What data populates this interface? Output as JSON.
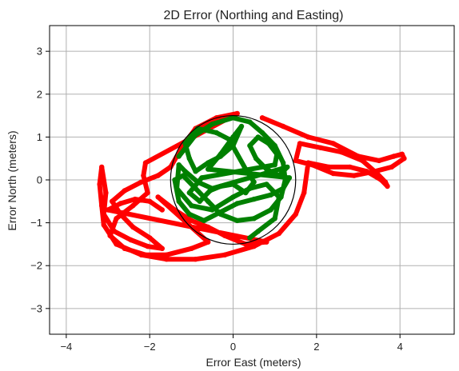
{
  "chart_data": {
    "type": "scatter",
    "title": "2D Error (Northing and Easting)",
    "xlabel": "Error East (meters)",
    "ylabel": "Error North (meters)",
    "xlim": [
      -4.4,
      5.3
    ],
    "ylim": [
      -3.6,
      3.6
    ],
    "xticks": [
      -4,
      -2,
      0,
      2,
      4
    ],
    "xtick_labels": [
      "−4",
      "−2",
      "0",
      "2",
      "4"
    ],
    "yticks": [
      -3,
      -2,
      -1,
      0,
      1,
      2,
      3
    ],
    "ytick_labels": [
      "−3",
      "−2",
      "−1",
      "0",
      "1",
      "2",
      "3"
    ],
    "grid": true,
    "circle": {
      "center": [
        0,
        0
      ],
      "radius": 1.5,
      "color": "#000000"
    },
    "series": [
      {
        "color": "#ff0000",
        "points": [
          [
            0.7,
            1.45
          ],
          [
            1.2,
            1.25
          ],
          [
            1.8,
            1.0
          ],
          [
            2.4,
            0.85
          ],
          [
            3.0,
            0.55
          ],
          [
            3.5,
            0.45
          ],
          [
            3.85,
            0.55
          ],
          [
            4.05,
            0.6
          ],
          [
            4.1,
            0.5
          ],
          [
            3.8,
            0.3
          ],
          [
            3.4,
            0.2
          ],
          [
            2.9,
            0.1
          ],
          [
            2.4,
            0.15
          ],
          [
            1.9,
            0.35
          ],
          [
            1.5,
            0.45
          ],
          [
            1.6,
            0.85
          ],
          [
            2.1,
            0.75
          ],
          [
            2.6,
            0.65
          ],
          [
            3.1,
            0.45
          ],
          [
            3.45,
            0.15
          ],
          [
            3.65,
            -0.05
          ],
          [
            3.7,
            -0.15
          ],
          [
            3.55,
            0.0
          ],
          [
            3.2,
            0.2
          ],
          [
            2.8,
            0.3
          ],
          [
            2.3,
            0.3
          ],
          [
            1.8,
            0.4
          ],
          [
            1.7,
            -0.3
          ],
          [
            1.5,
            -0.8
          ],
          [
            1.1,
            -1.25
          ],
          [
            0.5,
            -1.55
          ],
          [
            -0.2,
            -1.75
          ],
          [
            -0.9,
            -1.85
          ],
          [
            -1.6,
            -1.85
          ],
          [
            -2.2,
            -1.75
          ],
          [
            -2.8,
            -1.5
          ],
          [
            -3.1,
            -1.05
          ],
          [
            -3.15,
            -0.6
          ],
          [
            -3.2,
            -0.1
          ],
          [
            -3.15,
            0.3
          ],
          [
            -3.05,
            -0.3
          ],
          [
            -3.1,
            -0.8
          ],
          [
            -2.85,
            -1.2
          ],
          [
            -2.45,
            -1.4
          ],
          [
            -2.05,
            -1.55
          ],
          [
            -1.7,
            -1.6
          ],
          [
            -2.0,
            -1.35
          ],
          [
            -2.4,
            -1.1
          ],
          [
            -2.7,
            -0.8
          ],
          [
            -2.9,
            -0.5
          ],
          [
            -2.6,
            -0.25
          ],
          [
            -2.2,
            -0.05
          ],
          [
            -1.8,
            0.1
          ],
          [
            -1.5,
            0.3
          ],
          [
            -1.2,
            0.8
          ],
          [
            -0.9,
            1.2
          ],
          [
            -0.4,
            1.45
          ],
          [
            0.1,
            1.55
          ],
          [
            -2.1,
            0.4
          ],
          [
            -2.15,
            0.1
          ],
          [
            -2.05,
            -0.3
          ],
          [
            -2.4,
            -0.6
          ],
          [
            -2.8,
            -0.9
          ],
          [
            -2.95,
            -1.3
          ],
          [
            -2.6,
            -1.6
          ],
          [
            -2.1,
            -1.75
          ],
          [
            -1.6,
            -1.75
          ],
          [
            -1.0,
            -1.6
          ],
          [
            -0.6,
            -1.45
          ],
          [
            -1.8,
            -0.4
          ],
          [
            -1.4,
            -0.7
          ],
          [
            -1.0,
            -0.95
          ],
          [
            -0.6,
            -1.1
          ],
          [
            -0.2,
            -1.3
          ],
          [
            0.3,
            -1.5
          ],
          [
            0.8,
            -1.45
          ],
          [
            -3.0,
            -0.7
          ],
          [
            -2.7,
            -0.55
          ],
          [
            -2.35,
            -0.45
          ],
          [
            -2.0,
            -0.5
          ],
          [
            -1.7,
            -0.7
          ]
        ]
      },
      {
        "color": "#008000",
        "points": [
          [
            -1.3,
            0.55
          ],
          [
            -0.9,
            1.05
          ],
          [
            -0.5,
            1.3
          ],
          [
            0.0,
            1.45
          ],
          [
            0.4,
            1.35
          ],
          [
            0.7,
            1.1
          ],
          [
            1.0,
            0.8
          ],
          [
            1.2,
            0.4
          ],
          [
            1.25,
            0.0
          ],
          [
            1.15,
            -0.4
          ],
          [
            0.9,
            -0.7
          ],
          [
            0.5,
            -0.9
          ],
          [
            0.1,
            -0.95
          ],
          [
            -0.3,
            -0.8
          ],
          [
            -0.6,
            -0.5
          ],
          [
            -0.9,
            -0.2
          ],
          [
            -1.2,
            0.1
          ],
          [
            -1.4,
            0.0
          ],
          [
            -1.3,
            -0.5
          ],
          [
            -1.05,
            -0.8
          ],
          [
            -0.7,
            -0.95
          ],
          [
            -0.3,
            -0.75
          ],
          [
            0.1,
            -0.55
          ],
          [
            0.5,
            -0.45
          ],
          [
            0.9,
            -0.35
          ],
          [
            1.2,
            -0.2
          ],
          [
            1.35,
            0.05
          ],
          [
            -0.6,
            0.25
          ],
          [
            -0.3,
            0.6
          ],
          [
            0.0,
            1.0
          ],
          [
            0.2,
            1.25
          ],
          [
            0.0,
            0.8
          ],
          [
            -0.3,
            0.55
          ],
          [
            -0.6,
            0.4
          ],
          [
            -0.9,
            0.2
          ],
          [
            -1.05,
            0.5
          ],
          [
            -1.15,
            0.85
          ],
          [
            -0.85,
            1.2
          ],
          [
            -0.4,
            1.1
          ],
          [
            -0.1,
            0.95
          ],
          [
            0.3,
            0.25
          ],
          [
            0.5,
            -0.05
          ],
          [
            0.3,
            -0.3
          ],
          [
            0.0,
            -0.1
          ],
          [
            -0.3,
            -0.15
          ],
          [
            -0.55,
            -0.25
          ],
          [
            -0.8,
            -0.5
          ],
          [
            -1.05,
            -0.3
          ],
          [
            -0.75,
            0.05
          ],
          [
            1.0,
            0.35
          ],
          [
            1.05,
            0.6
          ],
          [
            0.85,
            0.85
          ],
          [
            0.6,
            1.0
          ],
          [
            0.4,
            0.8
          ],
          [
            0.55,
            0.5
          ],
          [
            0.8,
            0.25
          ],
          [
            1.1,
            0.1
          ],
          [
            1.3,
            0.3
          ],
          [
            -0.5,
            -0.2
          ],
          [
            -0.85,
            -0.05
          ],
          [
            -1.15,
            0.2
          ],
          [
            -1.3,
            0.35
          ],
          [
            -1.35,
            -0.2
          ],
          [
            -1.0,
            -0.6
          ],
          [
            -0.5,
            -0.7
          ],
          [
            0.0,
            -0.4
          ],
          [
            0.4,
            -0.2
          ],
          [
            0.8,
            -0.1
          ],
          [
            1.1,
            -0.4
          ],
          [
            1.0,
            -0.9
          ],
          [
            0.6,
            -1.2
          ],
          [
            0.4,
            -1.35
          ]
        ]
      }
    ]
  }
}
